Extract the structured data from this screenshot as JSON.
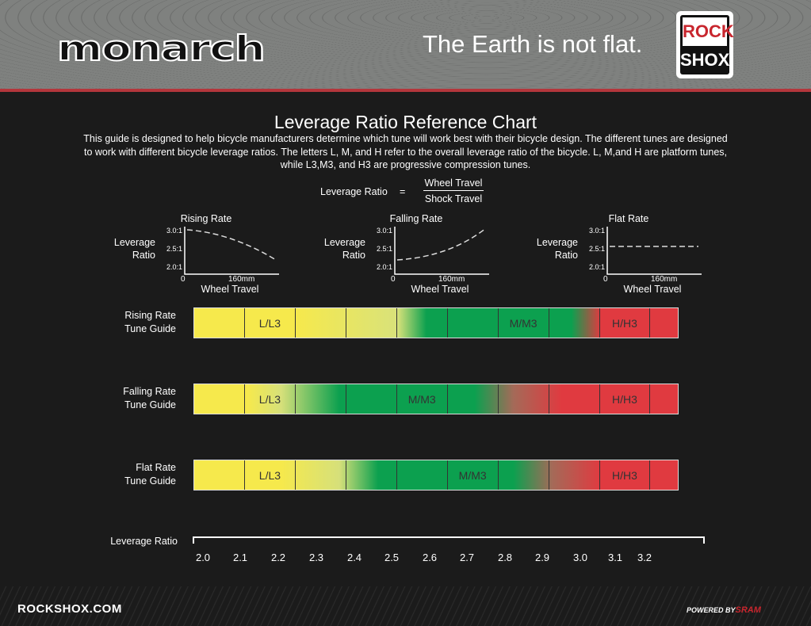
{
  "header": {
    "logo": "monarch",
    "tagline": "The Earth is not flat.",
    "brand_top": "ROCK",
    "brand_bottom": "SHOX"
  },
  "title": "Leverage Ratio Reference Chart",
  "intro": "This guide is designed to help bicycle manufacturers determine which tune will work best with their bicycle design. The different tunes are designed to work with different bicycle leverage ratios.  The letters L, M, and H refer to the overall leverage ratio of the bicycle. L, M,and H are platform tunes, while L3,M3, and H3 are progressive compression tunes.",
  "formula": {
    "label": "Leverage Ratio",
    "eq": "=",
    "numerator": "Wheel Travel",
    "denominator": "Shock Travel"
  },
  "mini_charts": [
    {
      "title": "Rising Rate",
      "ylabel1": "Leverage",
      "ylabel2": "Ratio",
      "ticks": [
        "3.0:1",
        "2.5:1",
        "2.0:1"
      ],
      "x0": "0",
      "x1": "160mm",
      "xlabel": "Wheel Travel"
    },
    {
      "title": "Falling Rate",
      "ylabel1": "Leverage",
      "ylabel2": "Ratio",
      "ticks": [
        "3.0:1",
        "2.5:1",
        "2.0:1"
      ],
      "x0": "0",
      "x1": "160mm",
      "xlabel": "Wheel Travel"
    },
    {
      "title": "Flat Rate",
      "ylabel1": "Leverage",
      "ylabel2": "Ratio",
      "ticks": [
        "3.0:1",
        "2.5:1",
        "2.0:1"
      ],
      "x0": "0",
      "x1": "160mm",
      "xlabel": "Wheel Travel"
    }
  ],
  "guides": [
    {
      "label1": "Rising Rate",
      "label2": "Tune Guide",
      "L": "L/L3",
      "M": "M/M3",
      "H": "H/H3"
    },
    {
      "label1": "Falling Rate",
      "label2": "Tune Guide",
      "L": "L/L3",
      "M": "M/M3",
      "H": "H/H3"
    },
    {
      "label1": "Flat Rate",
      "label2": "Tune Guide",
      "L": "L/L3",
      "M": "M/M3",
      "H": "H/H3"
    }
  ],
  "axis": {
    "label": "Leverage Ratio",
    "ticks": [
      "2.0",
      "2.1",
      "2.2",
      "2.3",
      "2.4",
      "2.5",
      "2.6",
      "2.7",
      "2.8",
      "2.9",
      "3.0",
      "3.1",
      "3.2"
    ]
  },
  "footer": {
    "site": "ROCKSHOX.COM",
    "powered": "POWERED BY",
    "sram": "SRAM"
  },
  "colors": {
    "yellow": "#f6e94c",
    "green": "#0ca04f",
    "red": "#e03a40"
  }
}
